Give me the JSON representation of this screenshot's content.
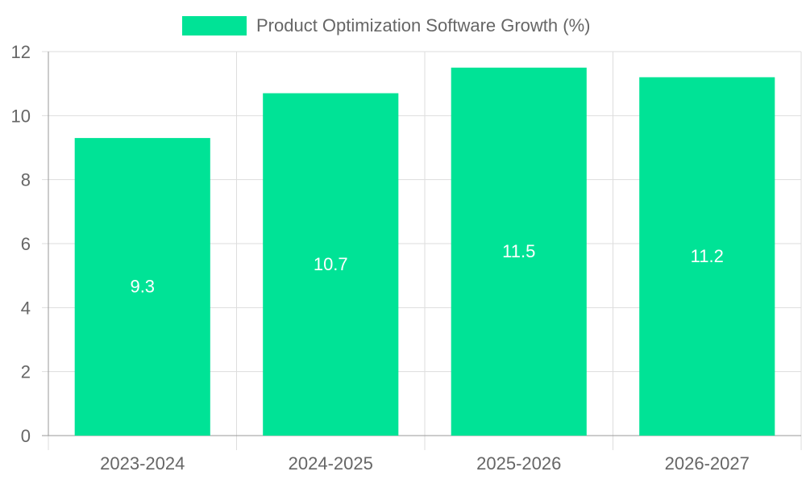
{
  "chart_data": {
    "type": "bar",
    "categories": [
      "2023-2024",
      "2024-2025",
      "2025-2026",
      "2026-2027"
    ],
    "series": [
      {
        "name": "Product Optimization Software Growth (%)",
        "values": [
          9.3,
          10.7,
          11.5,
          11.2
        ],
        "color": "#00e396"
      }
    ],
    "y_ticks": [
      "0",
      "2",
      "4",
      "6",
      "8",
      "10",
      "12"
    ],
    "data_labels": [
      "9.3",
      "10.7",
      "11.5",
      "11.2"
    ],
    "ylim": [
      0,
      12
    ],
    "legend_position": "top-center",
    "grid": true,
    "colors": {
      "grid": "#dddddd",
      "axis": "#999999",
      "tick_text": "#666666",
      "data_label": "#ffffff",
      "legend_text": "#666666"
    }
  }
}
